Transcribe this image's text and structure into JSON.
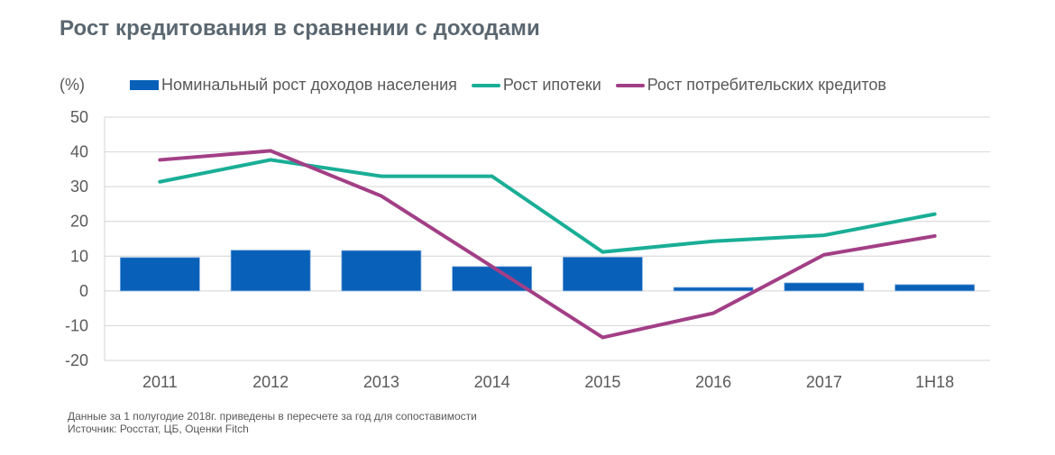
{
  "header": {
    "title": "Рост кредитования в сравнении с доходами"
  },
  "footnotes": {
    "note": "Данные за 1 полугодие 2018г. приведены в пересчете за год для сопоставимости",
    "source": "Источник: Росстат, ЦБ, Оценки Fitch"
  },
  "chart_data": {
    "type": "bar",
    "title": "Рост кредитования в сравнении с доходами",
    "ylabel": "(%)",
    "xlabel": "",
    "ylim": [
      -20,
      50
    ],
    "yticks": [
      -20,
      -10,
      0,
      10,
      20,
      30,
      40,
      50
    ],
    "grid": true,
    "legend_position": "top",
    "categories": [
      "2011",
      "2012",
      "2013",
      "2014",
      "2015",
      "2016",
      "2017",
      "1H18"
    ],
    "series": [
      {
        "name": "Номинальный рост доходов населения",
        "kind": "bar",
        "color": "#0860b8",
        "values": [
          9.6,
          11.7,
          11.6,
          7.0,
          9.7,
          1.0,
          2.3,
          1.8
        ]
      },
      {
        "name": "Рост ипотеки",
        "kind": "line",
        "color": "#1aae96",
        "values": [
          31.4,
          37.7,
          33.0,
          33.0,
          11.2,
          14.3,
          16.0,
          22.1
        ]
      },
      {
        "name": "Рост потребительских кредитов",
        "kind": "line",
        "color": "#a23f86",
        "values": [
          37.7,
          40.3,
          27.3,
          7.0,
          -13.4,
          -6.4,
          10.4,
          15.8
        ]
      }
    ]
  }
}
